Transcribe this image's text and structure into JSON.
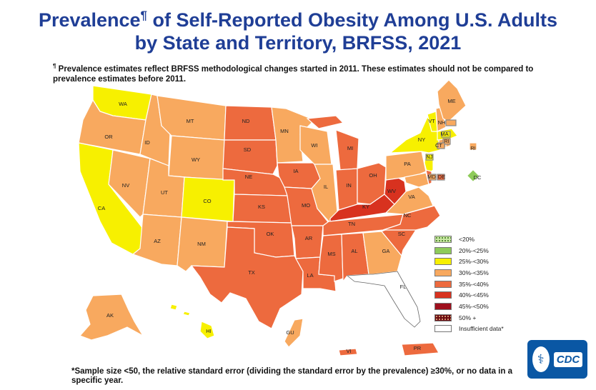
{
  "title": {
    "line1": "Prevalence",
    "marker": "¶",
    "line1_rest": " of Self-Reported Obesity Among U.S. Adults",
    "line2": "by State and Territory, BRFSS, 2021"
  },
  "footnote": {
    "marker": "¶",
    "text": "Prevalence estimates reflect BRFSS methodological changes started in 2011. These estimates should not be compared to prevalence estimates before 2011."
  },
  "legend": [
    {
      "label": "<20%",
      "color": "#c9e8a3",
      "pattern": "dots"
    },
    {
      "label": "20%-<25%",
      "color": "#8ecb5a"
    },
    {
      "label": "25%-<30%",
      "color": "#f7f000"
    },
    {
      "label": "30%-<35%",
      "color": "#f8a95f"
    },
    {
      "label": "35%-<40%",
      "color": "#ed6a3e"
    },
    {
      "label": "40%-<45%",
      "color": "#d8321f"
    },
    {
      "label": "45%-<50%",
      "color": "#9e0f1d"
    },
    {
      "label": "50% +",
      "color": "#6b0b10",
      "pattern": "dots"
    },
    {
      "label": "Insufficient data*",
      "color": "#ffffff"
    }
  ],
  "states": {
    "WA": "25%-<30%",
    "OR": "30%-<35%",
    "CA": "25%-<30%",
    "NV": "30%-<35%",
    "ID": "30%-<35%",
    "MT": "30%-<35%",
    "WY": "30%-<35%",
    "UT": "30%-<35%",
    "CO": "25%-<30%",
    "AZ": "30%-<35%",
    "NM": "30%-<35%",
    "ND": "35%-<40%",
    "SD": "35%-<40%",
    "NE": "35%-<40%",
    "KS": "35%-<40%",
    "OK": "35%-<40%",
    "TX": "35%-<40%",
    "MN": "30%-<35%",
    "IA": "35%-<40%",
    "MO": "35%-<40%",
    "AR": "35%-<40%",
    "LA": "35%-<40%",
    "WI": "30%-<35%",
    "IL": "30%-<35%",
    "MI": "35%-<40%",
    "IN": "35%-<40%",
    "OH": "35%-<40%",
    "KY": "40%-<45%",
    "TN": "35%-<40%",
    "MS": "35%-<40%",
    "AL": "35%-<40%",
    "GA": "30%-<35%",
    "FL": "Insufficient data*",
    "SC": "35%-<40%",
    "NC": "35%-<40%",
    "VA": "30%-<35%",
    "WV": "40%-<45%",
    "PA": "30%-<35%",
    "NY": "25%-<30%",
    "NJ": "25%-<30%",
    "DE": "35%-<40%",
    "MD": "30%-<35%",
    "DC": "20%-<25%",
    "CT": "30%-<35%",
    "RI": "30%-<35%",
    "MA": "25%-<30%",
    "VT": "25%-<30%",
    "NH": "30%-<35%",
    "ME": "30%-<35%",
    "AK": "30%-<35%",
    "HI": "25%-<30%",
    "GU": "30%-<35%",
    "PR": "35%-<40%",
    "VI": "35%-<40%"
  },
  "bottom_note": "*Sample size <50, the relative standard error (dividing the standard error by the prevalence) ≥30%, or no data in a specific year.",
  "logo": {
    "text": "CDC"
  }
}
